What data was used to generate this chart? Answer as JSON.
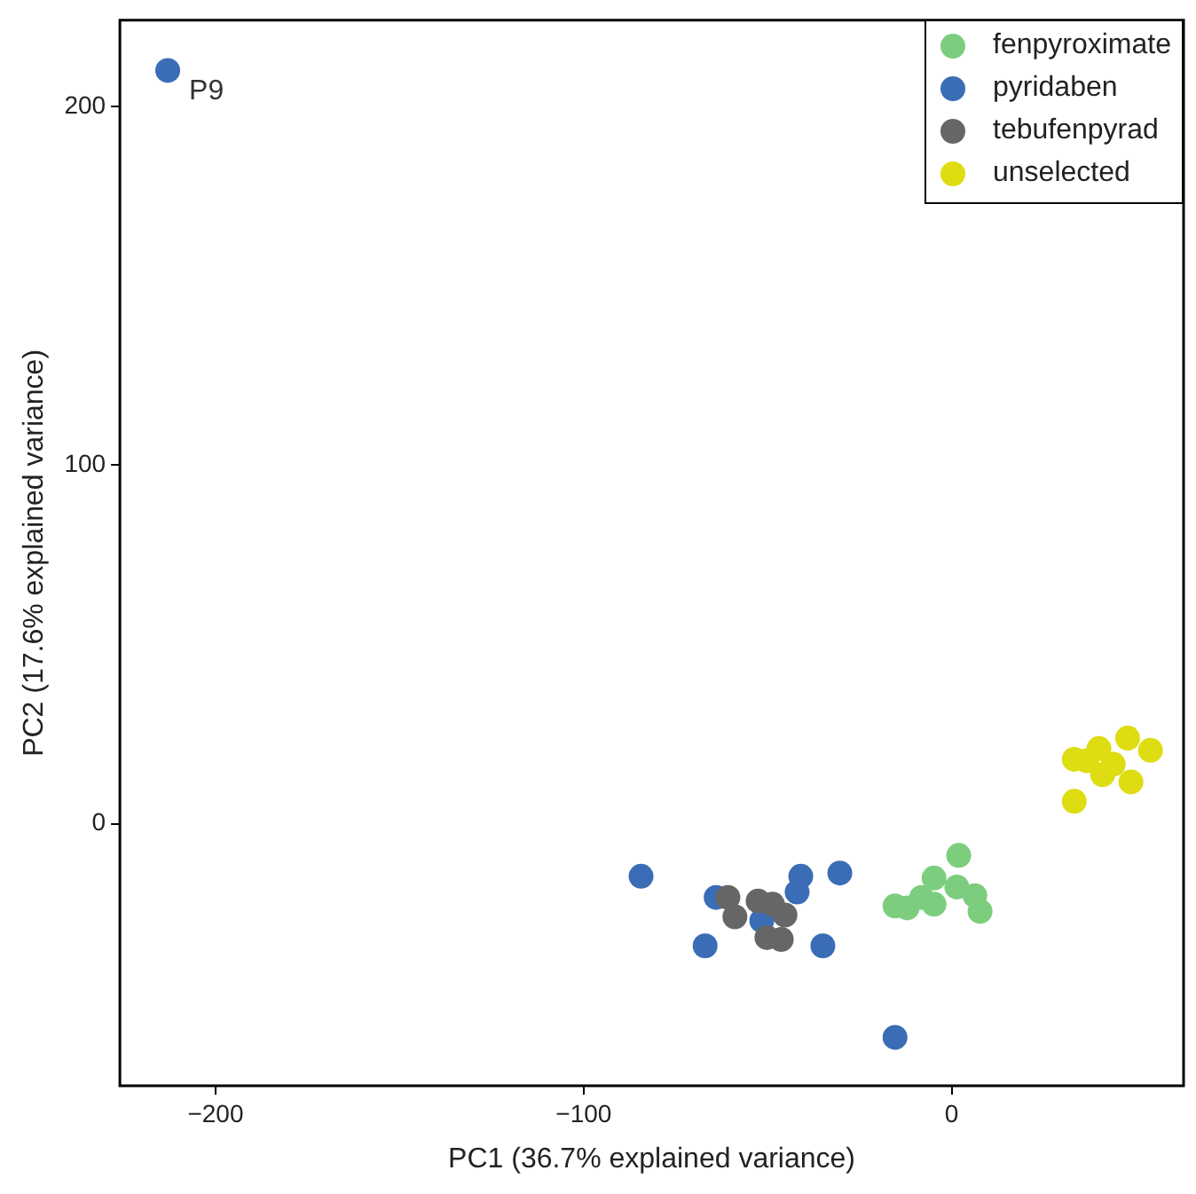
{
  "chart_data": {
    "type": "scatter",
    "xlabel": "PC1 (36.7% explained variance)",
    "ylabel": "PC2 (17.6% explained variance)",
    "xlim": [
      -226,
      63
    ],
    "ylim": [
      -73,
      224
    ],
    "xticks": [
      -200,
      -100,
      0
    ],
    "yticks": [
      0,
      100,
      200
    ],
    "grid": false,
    "legend": "top right",
    "marker": "circle",
    "annotations": [
      {
        "text": "P9",
        "x": -213,
        "y": 210
      }
    ],
    "series": [
      {
        "name": "fenpyroximate",
        "color": "#7dcd7e",
        "x": [
          -15.4,
          -12.1,
          -8.2,
          -4.8,
          -4.8,
          1.4,
          1.9,
          6.3,
          7.7
        ],
        "values": [
          -22.9,
          -23.4,
          -20.5,
          -15.1,
          -22.4,
          -17.6,
          -8.8,
          -20,
          -24.4
        ]
      },
      {
        "name": "pyridaben",
        "color": "#3a6db5",
        "x": [
          -213,
          -84.4,
          -67,
          -64,
          -41,
          -42,
          -30.4,
          -35,
          -15.4,
          -51.6
        ],
        "values": [
          210,
          -14.6,
          -34,
          -20.5,
          -14.6,
          -19,
          -13.7,
          -34,
          -59.5,
          -27
        ]
      },
      {
        "name": "tebufenpyrad",
        "color": "#666666",
        "x": [
          -60.8,
          -58.9,
          -52.6,
          -48.7,
          -45.3,
          -50.2,
          -46.3
        ],
        "values": [
          -20.5,
          -25.9,
          -21.5,
          -22.4,
          -25.4,
          -31.7,
          -32.2
        ]
      },
      {
        "name": "unselected",
        "color": "#dddd11",
        "x": [
          33.3,
          36.7,
          40,
          47.8,
          54,
          43.9,
          41,
          48.7,
          33.3
        ],
        "values": [
          18,
          17.6,
          21,
          23.9,
          20.5,
          16.6,
          13.7,
          11.7,
          6.3
        ]
      }
    ]
  }
}
